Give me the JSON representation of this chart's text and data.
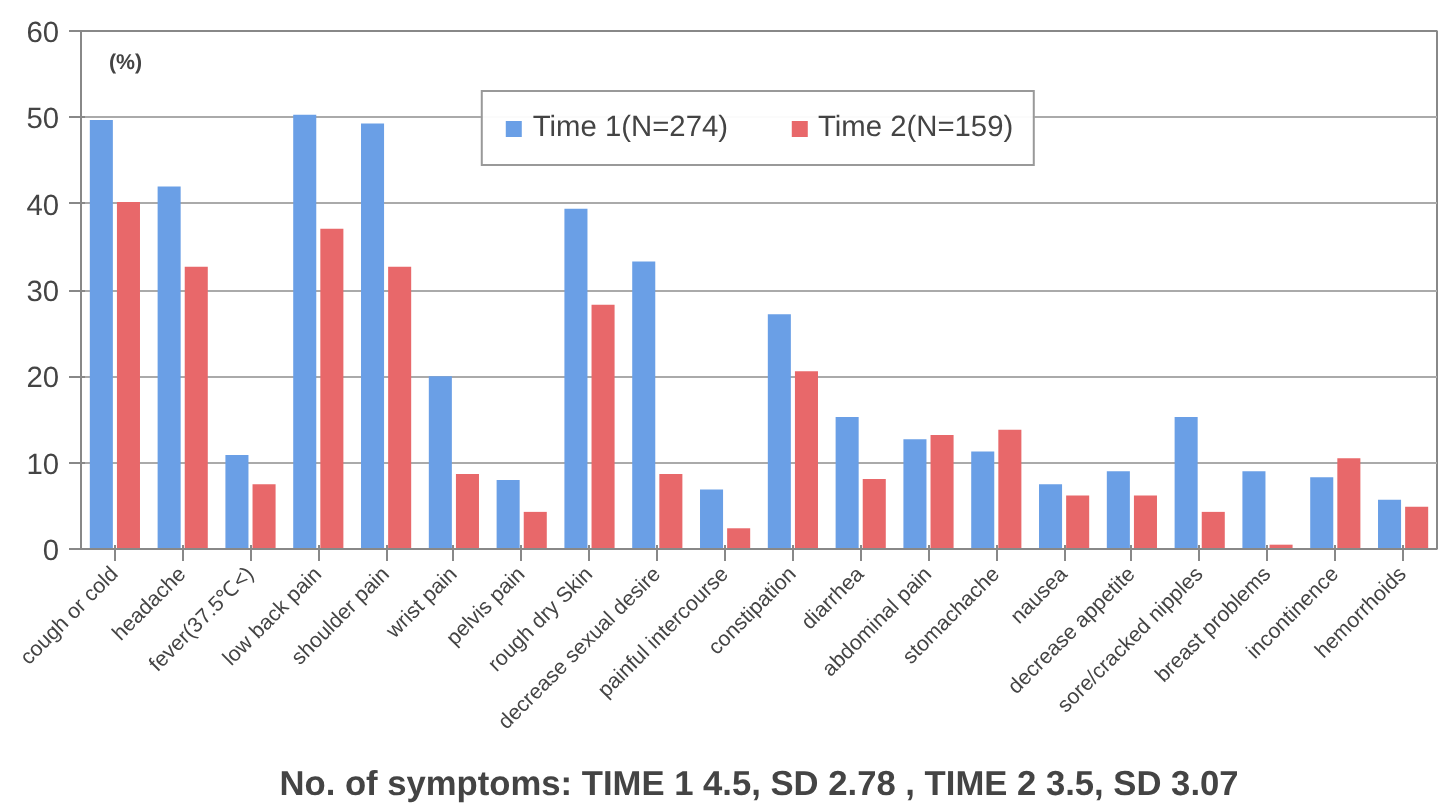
{
  "chart_data": {
    "type": "bar",
    "ylabel": "(%)",
    "categories": [
      "cough or cold",
      "headache",
      "fever(37.5℃<)",
      "low back pain",
      "shoulder pain",
      "wrist pain",
      "pelvis pain",
      "rough dry Skin",
      "decrease sexual desire",
      "painful intercourse",
      "constipation",
      "diarrhea",
      "abdominal pain",
      "stomachache",
      "nausea",
      "decrease appetite",
      "sore/cracked nipples",
      "breast problems",
      "incontinence",
      "hemorrhoids"
    ],
    "series": [
      {
        "name": "Time 1(N=274)",
        "color": "#6a9fe6",
        "values": [
          49.7,
          42.0,
          10.9,
          50.3,
          49.3,
          20.0,
          8.0,
          39.4,
          33.3,
          6.9,
          27.2,
          15.3,
          12.7,
          11.3,
          7.5,
          9.0,
          15.3,
          9.0,
          8.3,
          5.7
        ]
      },
      {
        "name": "Time 2(N=159)",
        "color": "#e8686a",
        "values": [
          40.2,
          32.7,
          7.5,
          37.1,
          32.7,
          8.7,
          4.3,
          28.3,
          8.7,
          2.4,
          20.6,
          8.1,
          13.2,
          13.8,
          6.2,
          6.2,
          4.3,
          0.5,
          10.5,
          4.9
        ]
      }
    ],
    "ylim": [
      0,
      60
    ],
    "yticks": [
      0,
      10,
      20,
      30,
      40,
      50,
      60
    ],
    "grid": "y",
    "legend": "top",
    "annotations": [
      "No. of symptoms: TIME 1 4.5, SD 2.78 , TIME 2 3.5, SD 3.07"
    ]
  }
}
